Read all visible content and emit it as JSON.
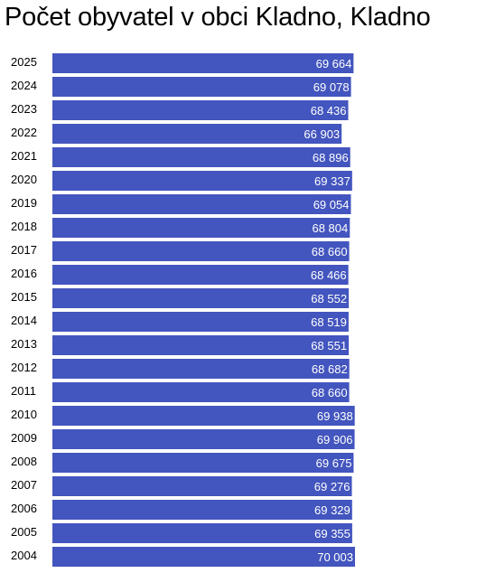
{
  "chart_data": {
    "type": "bar",
    "orientation": "horizontal",
    "title": "Počet obyvatel v obci Kladno, Kladno",
    "bar_color": "#4355be",
    "categories": [
      "2025",
      "2024",
      "2023",
      "2022",
      "2021",
      "2020",
      "2019",
      "2018",
      "2017",
      "2016",
      "2015",
      "2014",
      "2013",
      "2012",
      "2011",
      "2010",
      "2009",
      "2008",
      "2007",
      "2006",
      "2005",
      "2004"
    ],
    "values": [
      69664,
      69078,
      68436,
      66903,
      68896,
      69337,
      69054,
      68804,
      68660,
      68466,
      68552,
      68519,
      68551,
      68682,
      68660,
      69938,
      69906,
      69675,
      69276,
      69329,
      69355,
      70003
    ],
    "value_labels": [
      "69 664",
      "69 078",
      "68 436",
      "66 903",
      "68 896",
      "69 337",
      "69 054",
      "68 804",
      "68 660",
      "68 466",
      "68 552",
      "68 519",
      "68 551",
      "68 682",
      "68 660",
      "69 938",
      "69 906",
      "69 675",
      "69 276",
      "69 329",
      "69 355",
      "70 003"
    ],
    "xlim": [
      0,
      70003
    ]
  }
}
